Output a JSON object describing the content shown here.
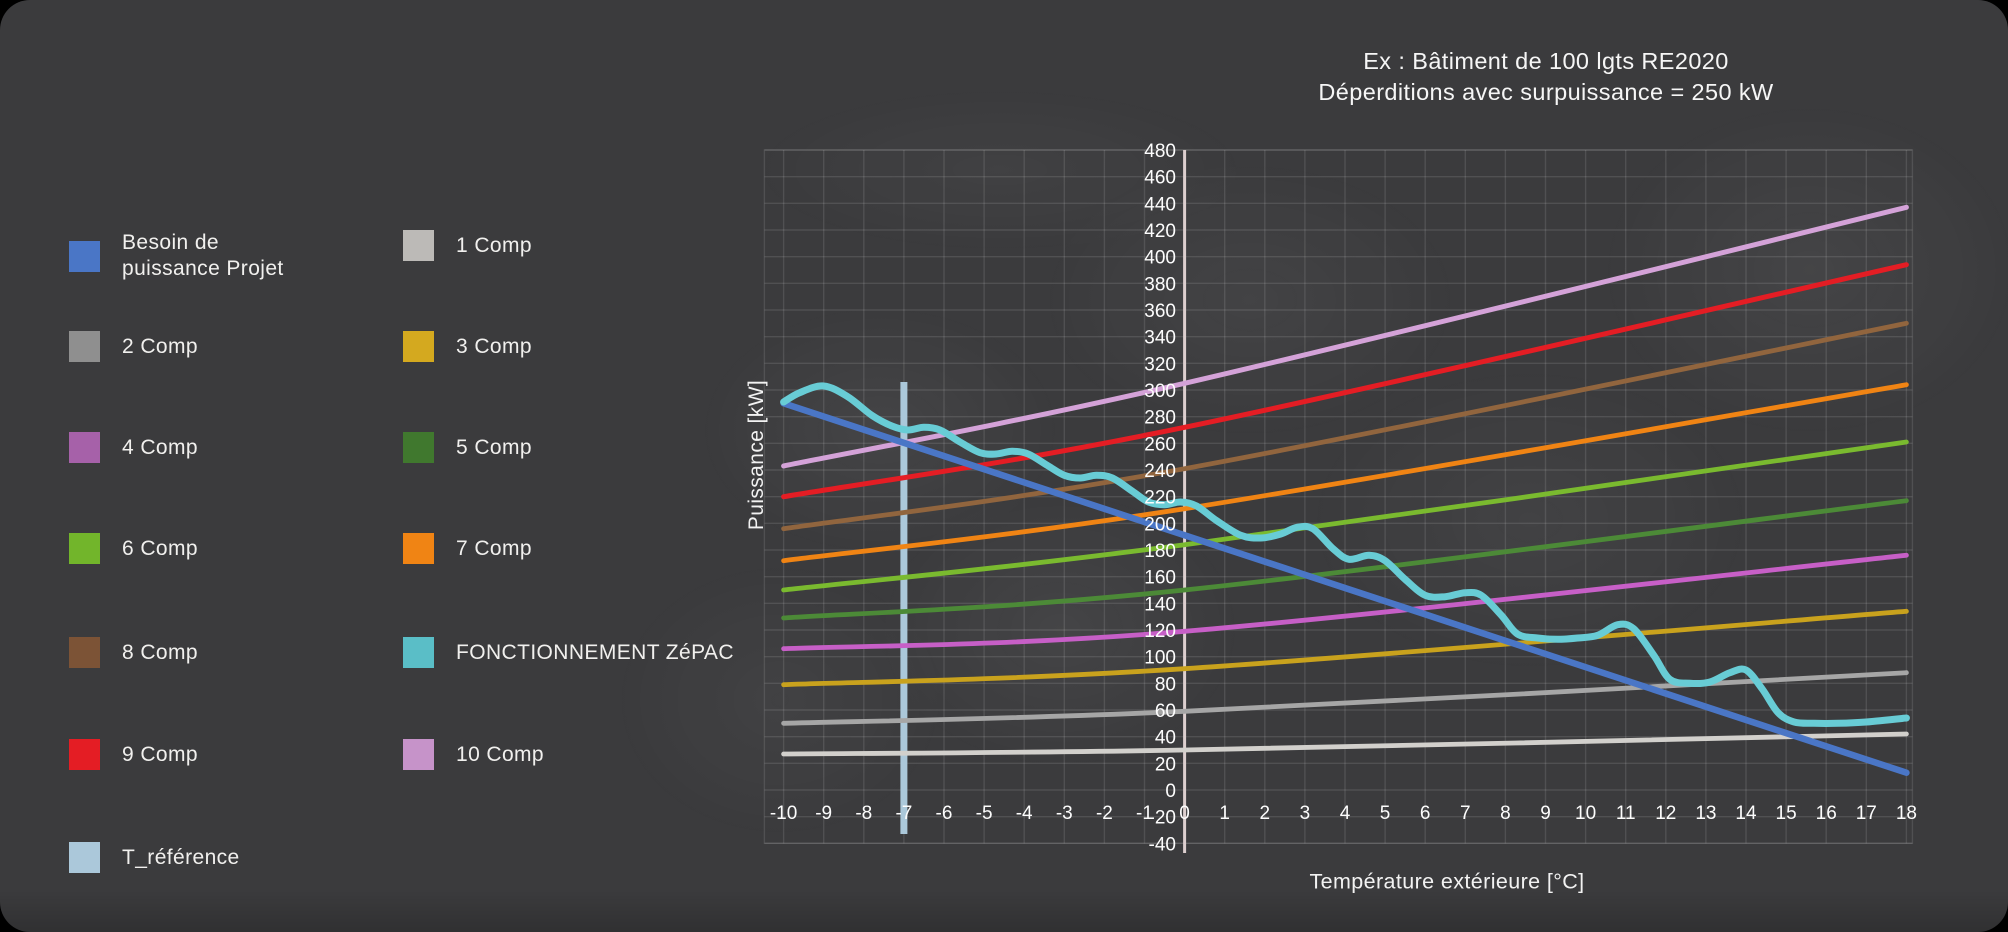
{
  "header": {
    "title_line1": "Ex : Bâtiment de 100 lgts RE2020",
    "title_line2": "Déperditions avec surpuissance = 250 kW"
  },
  "legend": {
    "items": [
      {
        "id": "besoin",
        "label": "Besoin de puissance Projet",
        "label_lines": [
          "Besoin de",
          "puissance Projet"
        ],
        "color": "#4a76c6"
      },
      {
        "id": "comp1",
        "label": "1 Comp",
        "color": "#bcbab7"
      },
      {
        "id": "comp2",
        "label": "2 Comp",
        "color": "#8f8f8f"
      },
      {
        "id": "comp3",
        "label": "3 Comp",
        "color": "#d4a91f"
      },
      {
        "id": "comp4",
        "label": "4 Comp",
        "color": "#a661a9"
      },
      {
        "id": "comp5",
        "label": "5 Comp",
        "color": "#40782e"
      },
      {
        "id": "comp6",
        "label": "6 Comp",
        "color": "#72b52b"
      },
      {
        "id": "comp7",
        "label": "7 Comp",
        "color": "#f08414"
      },
      {
        "id": "comp8",
        "label": "8 Comp",
        "color": "#7c5336"
      },
      {
        "id": "zepac",
        "label": "FONCTIONNEMENT ZéPAC",
        "color": "#5abec7"
      },
      {
        "id": "comp9",
        "label": "9 Comp",
        "color": "#e41d24"
      },
      {
        "id": "comp10",
        "label": "10 Comp",
        "color": "#c693c9"
      },
      {
        "id": "t_ref",
        "label": "T_référence",
        "color": "#abc8da"
      }
    ]
  },
  "chart_data": {
    "type": "line",
    "title": "Ex : Bâtiment de 100 lgts RE2020 — Déperditions avec surpuissance = 250 kW",
    "xlabel": "Température extérieure [°C]",
    "ylabel": "Puissance [kW]",
    "xlim": [
      -10.5,
      18.15
    ],
    "ylim": [
      -44,
      484
    ],
    "grid": true,
    "legend_position": "left",
    "x_ticks": [
      -10,
      -9,
      -8,
      -7,
      -6,
      -5,
      -4,
      -3,
      -2,
      -1,
      0,
      1,
      2,
      3,
      4,
      5,
      6,
      7,
      8,
      9,
      10,
      11,
      12,
      13,
      14,
      15,
      16,
      17,
      18
    ],
    "y_ticks": [
      480,
      460,
      440,
      420,
      400,
      380,
      360,
      340,
      320,
      300,
      280,
      260,
      240,
      220,
      200,
      180,
      160,
      140,
      120,
      100,
      80,
      60,
      40,
      20,
      0,
      -20,
      -40
    ],
    "axis_line_x": 0,
    "reference_line": {
      "id": "t_ref",
      "label": "T_référence",
      "x": -7,
      "from": 306,
      "to": -33,
      "color": "#abc8da"
    },
    "series": [
      {
        "id": "comp1",
        "name": "1 Comp",
        "line_color": "#d2d0cc",
        "width": 4.8,
        "points": [
          [
            -10,
            27
          ],
          [
            0,
            30
          ],
          [
            18,
            42
          ]
        ]
      },
      {
        "id": "comp2",
        "name": "2 Comp",
        "line_color": "#a6a6a6",
        "width": 4.8,
        "points": [
          [
            -10,
            50
          ],
          [
            0,
            59
          ],
          [
            18,
            88
          ]
        ]
      },
      {
        "id": "comp3",
        "name": "3 Comp",
        "line_color": "#c9a21d",
        "width": 4.8,
        "points": [
          [
            -10,
            79
          ],
          [
            0,
            91
          ],
          [
            18,
            134
          ]
        ]
      },
      {
        "id": "comp4",
        "name": "4 Comp",
        "line_color": "#c75fc7",
        "width": 4.8,
        "points": [
          [
            -10,
            106
          ],
          [
            0,
            119
          ],
          [
            18,
            176
          ]
        ]
      },
      {
        "id": "comp5",
        "name": "5 Comp",
        "line_color": "#4c8a37",
        "width": 4.8,
        "points": [
          [
            -10,
            129
          ],
          [
            0,
            150
          ],
          [
            18,
            217
          ]
        ]
      },
      {
        "id": "comp6",
        "name": "6 Comp",
        "line_color": "#7aba2f",
        "width": 4.8,
        "points": [
          [
            -10,
            150
          ],
          [
            0,
            184
          ],
          [
            18,
            261
          ]
        ]
      },
      {
        "id": "comp7",
        "name": "7 Comp",
        "line_color": "#f08414",
        "width": 4.8,
        "points": [
          [
            -10,
            172
          ],
          [
            0,
            211
          ],
          [
            18,
            304
          ]
        ]
      },
      {
        "id": "comp8",
        "name": "8 Comp",
        "line_color": "#91653e",
        "width": 4.8,
        "points": [
          [
            -10,
            196
          ],
          [
            0,
            241
          ],
          [
            18,
            350
          ]
        ]
      },
      {
        "id": "comp9",
        "name": "9 Comp",
        "line_color": "#e41d24",
        "width": 5,
        "points": [
          [
            -10,
            220
          ],
          [
            0,
            272
          ],
          [
            18,
            394
          ]
        ]
      },
      {
        "id": "comp10",
        "name": "10 Comp",
        "line_color": "#d4a2d8",
        "width": 5,
        "points": [
          [
            -10,
            243
          ],
          [
            0,
            305
          ],
          [
            18,
            437
          ]
        ]
      },
      {
        "id": "besoin",
        "name": "Besoin de puissance Projet",
        "line_color": "#4a76c6",
        "width": 6.5,
        "points": [
          [
            -10,
            290
          ],
          [
            18,
            13
          ]
        ]
      },
      {
        "id": "zepac",
        "name": "FONCTIONNEMENT ZéPAC",
        "line_color": "#68ccd5",
        "width": 7,
        "points": [
          [
            -10,
            291
          ],
          [
            -9.6,
            298
          ],
          [
            -9,
            303
          ],
          [
            -8.4,
            295
          ],
          [
            -7.8,
            281
          ],
          [
            -7.3,
            273
          ],
          [
            -6.9,
            270
          ],
          [
            -6.5,
            272
          ],
          [
            -6.1,
            270
          ],
          [
            -5.6,
            261
          ],
          [
            -5.1,
            253
          ],
          [
            -4.7,
            252
          ],
          [
            -4.3,
            254
          ],
          [
            -3.9,
            252
          ],
          [
            -3.4,
            243
          ],
          [
            -3,
            236
          ],
          [
            -2.6,
            234
          ],
          [
            -2.2,
            236
          ],
          [
            -1.8,
            234
          ],
          [
            -1.3,
            224
          ],
          [
            -0.9,
            216
          ],
          [
            -0.5,
            214
          ],
          [
            -0.1,
            216
          ],
          [
            0.3,
            213
          ],
          [
            0.8,
            202
          ],
          [
            1.4,
            191
          ],
          [
            1.9,
            189
          ],
          [
            2.4,
            192
          ],
          [
            2.8,
            197
          ],
          [
            3.2,
            196
          ],
          [
            3.7,
            181
          ],
          [
            4.1,
            173
          ],
          [
            4.6,
            176
          ],
          [
            5,
            172
          ],
          [
            5.5,
            158
          ],
          [
            6,
            146
          ],
          [
            6.5,
            145
          ],
          [
            7,
            148
          ],
          [
            7.4,
            146
          ],
          [
            7.9,
            131
          ],
          [
            8.3,
            117
          ],
          [
            8.8,
            114
          ],
          [
            9.3,
            113
          ],
          [
            9.8,
            114
          ],
          [
            10.3,
            116
          ],
          [
            10.8,
            124
          ],
          [
            11.2,
            121
          ],
          [
            11.7,
            101
          ],
          [
            12.1,
            83
          ],
          [
            12.6,
            80
          ],
          [
            13.1,
            81
          ],
          [
            13.6,
            88
          ],
          [
            14,
            90
          ],
          [
            14.4,
            76
          ],
          [
            14.8,
            58
          ],
          [
            15.2,
            51
          ],
          [
            15.7,
            50
          ],
          [
            16.3,
            50
          ],
          [
            17,
            51
          ],
          [
            18,
            54
          ]
        ]
      }
    ],
    "colors": {
      "grid": "rgba(255,255,255,0.11)",
      "axis_line": "#ddcfcf",
      "background": "#3b3b3d",
      "tick_text": "#fdfdfd"
    }
  }
}
